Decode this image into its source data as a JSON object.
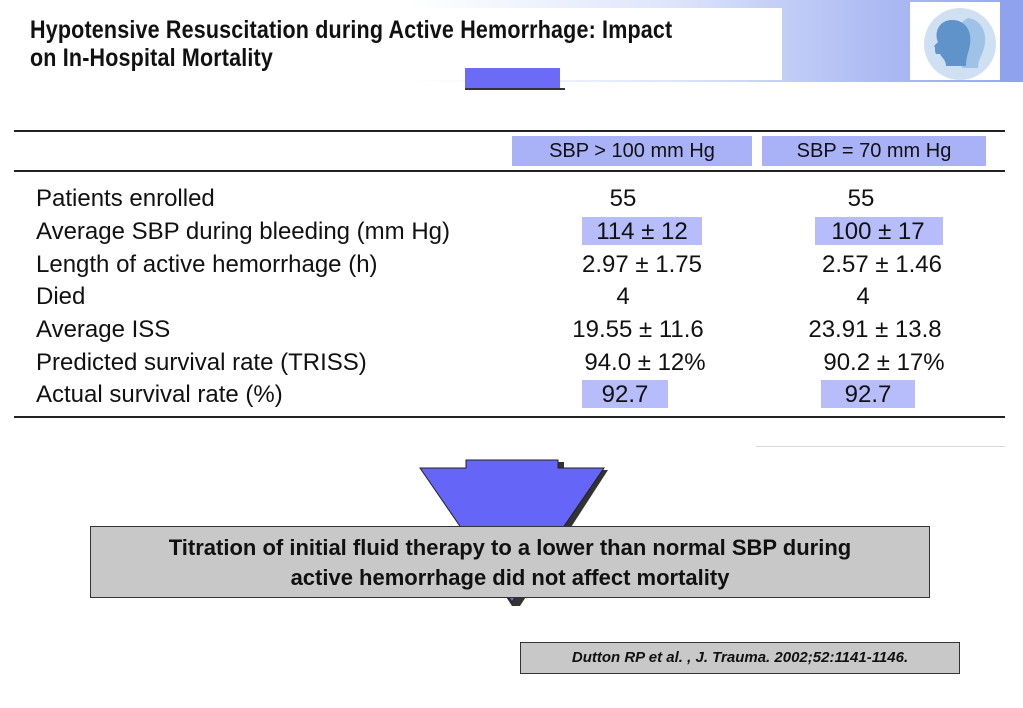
{
  "slide": {
    "title_line1": "Hypotensive Resuscitation during Active Hemorrhage: Impact",
    "title_line2": "on In-Hospital Mortality"
  },
  "table": {
    "columns": [
      "SBP > 100 mm Hg",
      "SBP = 70 mm Hg"
    ],
    "rows": [
      {
        "label": "Patients enrolled",
        "values": [
          "55",
          "55"
        ]
      },
      {
        "label": "Average SBP during bleeding (mm Hg)",
        "values": [
          "114 ± 12",
          "100 ± 17"
        ]
      },
      {
        "label": "Length of active hemorrhage (h)",
        "values": [
          "2.97 ± 1.75",
          "2.57 ± 1.46"
        ]
      },
      {
        "label": "Died",
        "values": [
          "4",
          "4"
        ]
      },
      {
        "label": "Average ISS",
        "values": [
          "19.55 ± 11.6",
          "23.91 ± 13.8"
        ]
      },
      {
        "label": "Predicted survival rate (TRISS)",
        "values": [
          "94.0 ± 12%",
          "90.2 ± 17%"
        ]
      },
      {
        "label": "Actual survival rate (%)",
        "values": [
          "92.7",
          "92.7"
        ]
      }
    ]
  },
  "conclusion": {
    "line1": "Titration of initial fluid therapy to a lower than normal SBP during",
    "line2": "active hemorrhage did not affect mortality"
  },
  "citation": "Dutton RP et al. , J. Trauma. 2002;52:1141-1146.",
  "colors": {
    "highlight": "#b6bdfa",
    "arrow": "#6565f7",
    "box": "#c8c8c8"
  },
  "icons": {
    "logo": "profile-heads-icon"
  }
}
